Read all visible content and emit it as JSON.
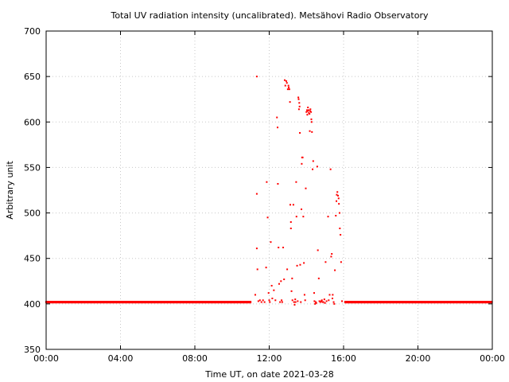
{
  "chart_data": {
    "type": "scatter",
    "title": "Total UV radiation intensity (uncalibrated). Metsähovi Radio Observatory",
    "xlabel": "Time UT, on date 2021-03-28",
    "ylabel": "Arbitrary unit",
    "xlim": [
      "00:00",
      "24:00"
    ],
    "ylim": [
      350,
      700
    ],
    "x_ticks": [
      "00:00",
      "04:00",
      "08:00",
      "12:00",
      "16:00",
      "20:00",
      "00:00"
    ],
    "y_ticks": [
      350,
      400,
      450,
      500,
      550,
      600,
      650,
      700
    ],
    "grid": true,
    "marker_color": "#ff0000",
    "baseline": {
      "value": 402,
      "segments": [
        [
          "00:00",
          "11:00"
        ],
        [
          "16:05",
          "24:00"
        ]
      ],
      "sample_minutes": 1.5
    },
    "series": [
      {
        "points": [
          [
            "11:15",
            410
          ],
          [
            "11:20",
            650
          ],
          [
            "11:20",
            521
          ],
          [
            "11:20",
            461
          ],
          [
            "11:22",
            438
          ],
          [
            "11:25",
            403
          ],
          [
            "11:30",
            404
          ],
          [
            "11:35",
            402
          ],
          [
            "11:40",
            404
          ],
          [
            "11:45",
            402
          ],
          [
            "11:50",
            440
          ],
          [
            "11:52",
            534
          ],
          [
            "11:55",
            495
          ],
          [
            "11:58",
            412
          ],
          [
            "12:00",
            404
          ],
          [
            "12:02",
            402
          ],
          [
            "12:05",
            468
          ],
          [
            "12:08",
            420
          ],
          [
            "12:10",
            406
          ],
          [
            "12:15",
            415
          ],
          [
            "12:20",
            404
          ],
          [
            "12:25",
            605
          ],
          [
            "12:27",
            594
          ],
          [
            "12:28",
            532
          ],
          [
            "12:30",
            462
          ],
          [
            "12:32",
            422
          ],
          [
            "12:35",
            402
          ],
          [
            "12:38",
            425
          ],
          [
            "12:40",
            404
          ],
          [
            "12:42",
            402
          ],
          [
            "12:45",
            462
          ],
          [
            "12:48",
            427
          ],
          [
            "12:50",
            646
          ],
          [
            "12:52",
            640
          ],
          [
            "12:55",
            645
          ],
          [
            "12:57",
            643
          ],
          [
            "12:58",
            438
          ],
          [
            "13:00",
            636
          ],
          [
            "13:02",
            640
          ],
          [
            "13:03",
            638
          ],
          [
            "13:05",
            636
          ],
          [
            "13:07",
            622
          ],
          [
            "13:08",
            509
          ],
          [
            "13:10",
            490
          ],
          [
            "13:10",
            483
          ],
          [
            "13:12",
            414
          ],
          [
            "13:14",
            428
          ],
          [
            "13:15",
            404
          ],
          [
            "13:18",
            509
          ],
          [
            "13:20",
            402
          ],
          [
            "13:22",
            399
          ],
          [
            "13:24",
            405
          ],
          [
            "13:25",
            402
          ],
          [
            "13:27",
            534
          ],
          [
            "13:28",
            496
          ],
          [
            "13:30",
            442
          ],
          [
            "13:32",
            403
          ],
          [
            "13:34",
            627
          ],
          [
            "13:35",
            625
          ],
          [
            "13:36",
            614
          ],
          [
            "13:37",
            621
          ],
          [
            "13:38",
            617
          ],
          [
            "13:39",
            588
          ],
          [
            "13:40",
            443
          ],
          [
            "13:42",
            402
          ],
          [
            "13:44",
            504
          ],
          [
            "13:45",
            554
          ],
          [
            "13:46",
            561
          ],
          [
            "13:48",
            561
          ],
          [
            "13:50",
            496
          ],
          [
            "13:52",
            445
          ],
          [
            "13:54",
            410
          ],
          [
            "13:56",
            404
          ],
          [
            "13:58",
            527
          ],
          [
            "14:00",
            611
          ],
          [
            "14:02",
            613
          ],
          [
            "14:03",
            608
          ],
          [
            "14:04",
            612
          ],
          [
            "14:05",
            616
          ],
          [
            "14:07",
            613
          ],
          [
            "14:08",
            610
          ],
          [
            "14:10",
            609
          ],
          [
            "14:11",
            590
          ],
          [
            "14:12",
            612
          ],
          [
            "14:13",
            614
          ],
          [
            "14:15",
            611
          ],
          [
            "14:16",
            603
          ],
          [
            "14:17",
            600
          ],
          [
            "14:18",
            589
          ],
          [
            "14:20",
            548
          ],
          [
            "14:22",
            557
          ],
          [
            "14:25",
            412
          ],
          [
            "14:26",
            403
          ],
          [
            "14:28",
            400
          ],
          [
            "14:30",
            402
          ],
          [
            "14:32",
            401
          ],
          [
            "14:35",
            551
          ],
          [
            "14:37",
            459
          ],
          [
            "14:40",
            428
          ],
          [
            "14:42",
            403
          ],
          [
            "14:45",
            402
          ],
          [
            "14:48",
            403
          ],
          [
            "14:50",
            404
          ],
          [
            "14:52",
            402
          ],
          [
            "14:55",
            402
          ],
          [
            "14:58",
            405
          ],
          [
            "15:00",
            401
          ],
          [
            "15:02",
            446
          ],
          [
            "15:05",
            403
          ],
          [
            "15:10",
            496
          ],
          [
            "15:12",
            404
          ],
          [
            "15:15",
            410
          ],
          [
            "15:18",
            548
          ],
          [
            "15:20",
            452
          ],
          [
            "15:22",
            455
          ],
          [
            "15:24",
            406
          ],
          [
            "15:25",
            410
          ],
          [
            "15:28",
            402
          ],
          [
            "15:30",
            400
          ],
          [
            "15:32",
            437
          ],
          [
            "15:35",
            497
          ],
          [
            "15:37",
            513
          ],
          [
            "15:38",
            520
          ],
          [
            "15:40",
            523
          ],
          [
            "15:42",
            519
          ],
          [
            "15:44",
            516
          ],
          [
            "15:45",
            510
          ],
          [
            "15:47",
            500
          ],
          [
            "15:48",
            483
          ],
          [
            "15:50",
            476
          ],
          [
            "15:52",
            446
          ],
          [
            "15:55",
            403
          ]
        ]
      }
    ]
  }
}
